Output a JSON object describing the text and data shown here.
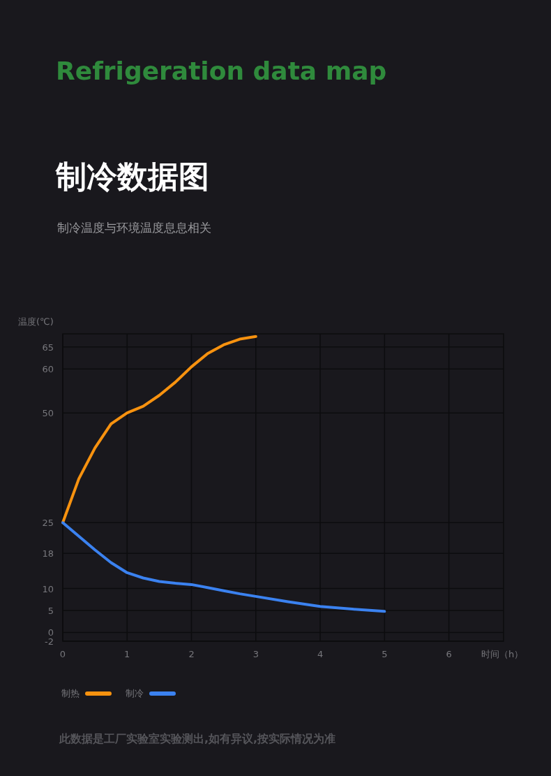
{
  "chart_data": {
    "type": "line",
    "title": "Refrigeration data map",
    "subtitle": "制冷数据图",
    "ylabel": "温度(℃)",
    "xlabel": "时间（h）",
    "annotations": [
      "制冷温度与环境温度息息相关",
      "此数据是工厂实验室实验测出,如有异议,按实际情况为准"
    ],
    "x": [
      0,
      0.25,
      0.5,
      0.75,
      1,
      1.25,
      1.5,
      1.75,
      2,
      2.25,
      2.5,
      2.75,
      3,
      3.5,
      4,
      4.5,
      5
    ],
    "series": [
      {
        "name": "制热",
        "color": "#f7920f",
        "values": [
          25,
          35,
          42,
          47.5,
          50,
          51.5,
          54,
          57,
          60.5,
          63.5,
          65.5,
          66.8,
          67.4,
          null,
          null,
          null,
          null
        ]
      },
      {
        "name": "制冷",
        "color": "#3b82f0",
        "values": [
          25,
          21.9,
          18.8,
          15.9,
          13.6,
          12.4,
          11.6,
          11.2,
          10.9,
          10.2,
          9.5,
          8.8,
          8.2,
          7,
          5.9,
          5.3,
          4.8
        ]
      }
    ],
    "xlim": [
      0,
      6.85
    ],
    "xticks": [
      0,
      1,
      2,
      3,
      4,
      5,
      6
    ],
    "ylim": [
      -2,
      68
    ],
    "yticks": [
      -2,
      0,
      5,
      10,
      18,
      25,
      50,
      60,
      65
    ],
    "grid": true,
    "legend": "bottom left",
    "marker": "none",
    "line_style": "solid"
  }
}
